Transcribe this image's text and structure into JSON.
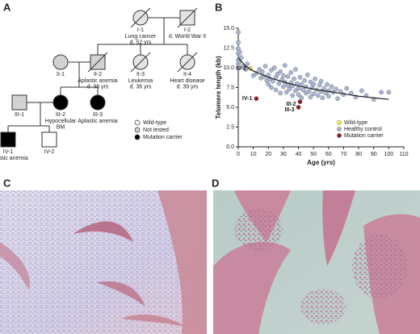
{
  "panel_labels": [
    "A",
    "B",
    "C",
    "D"
  ],
  "pedigree": {
    "nodes": [
      {
        "id": "I-1",
        "shape": "circle",
        "fill": "#e4e4e4",
        "deceased": true,
        "caption": [
          "Lung cancer",
          "d. 52 yrs"
        ]
      },
      {
        "id": "I-2",
        "shape": "square",
        "fill": "#e4e4e4",
        "deceased": true,
        "caption": [
          "d. World War II"
        ]
      },
      {
        "id": "II-1",
        "shape": "circle",
        "fill": "#d2d2d2",
        "deceased": false,
        "caption": []
      },
      {
        "id": "II-2",
        "shape": "square",
        "fill": "#d2d2d2",
        "deceased": true,
        "caption": [
          "Aplastic anemia",
          "d. 38 yrs"
        ]
      },
      {
        "id": "II-3",
        "shape": "circle",
        "fill": "#e4e4e4",
        "deceased": true,
        "caption": [
          "Leukemia",
          "d. 36 yrs"
        ]
      },
      {
        "id": "II-4",
        "shape": "circle",
        "fill": "#e4e4e4",
        "deceased": true,
        "caption": [
          "Heart disease",
          "d. 39 yrs"
        ]
      },
      {
        "id": "III-1",
        "shape": "square",
        "fill": "#d2d2d2",
        "deceased": false,
        "caption": []
      },
      {
        "id": "III-2",
        "shape": "circle",
        "fill": "#000000",
        "deceased": false,
        "caption": [
          "Hypocellular",
          "BM"
        ]
      },
      {
        "id": "III-3",
        "shape": "circle",
        "fill": "#000000",
        "deceased": false,
        "caption": [
          "Aplastic anemia"
        ]
      },
      {
        "id": "IV-1",
        "shape": "square",
        "fill": "#000000",
        "deceased": false,
        "caption": [
          "Aplastic anemia"
        ]
      },
      {
        "id": "IV-2",
        "shape": "square",
        "fill": "#ffffff",
        "deceased": false,
        "caption": []
      }
    ],
    "legend": [
      {
        "label": "Wild-type",
        "fill": "#ffffff"
      },
      {
        "label": "Not tested",
        "fill": "#d2d2d2"
      },
      {
        "label": "Mutation carrier",
        "fill": "#000000"
      }
    ]
  },
  "chart_data": {
    "type": "scatter",
    "x_label": "Age (yrs)",
    "y_label": "Telomere length (kb)",
    "xlim": [
      0,
      110
    ],
    "xticks": [
      0,
      10,
      20,
      30,
      40,
      50,
      60,
      70,
      80,
      90,
      100,
      110
    ],
    "ylim": [
      0,
      15
    ],
    "yticks": [
      {
        "value": 0,
        "label": "0.0"
      },
      {
        "value": 2.5,
        "label": "2.5"
      },
      {
        "value": 5,
        "label": "5.0"
      },
      {
        "value": 7.5,
        "label": "7.5"
      },
      {
        "value": 10,
        "label": "10.0"
      },
      {
        "value": 12.5,
        "label": "12.5"
      },
      {
        "value": 15,
        "label": "15.0"
      }
    ],
    "legend_position": "lower right",
    "series": [
      {
        "name": "Wild-type",
        "color": "#f2e84a",
        "x": [
          8
        ],
        "values": [
          9.9
        ],
        "labels": [
          "IV-2"
        ]
      },
      {
        "name": "Healthy control",
        "color": "#a9b8d6",
        "x": [
          0,
          0,
          0,
          0,
          0,
          0,
          0,
          1,
          1,
          2,
          3,
          5,
          6,
          10,
          12,
          14,
          15,
          16,
          17,
          18,
          19,
          20,
          20,
          21,
          22,
          22,
          23,
          24,
          25,
          25,
          26,
          27,
          28,
          28,
          29,
          30,
          30,
          31,
          31,
          32,
          33,
          33,
          34,
          35,
          35,
          36,
          36,
          37,
          38,
          38,
          39,
          40,
          40,
          41,
          42,
          42,
          43,
          44,
          45,
          45,
          46,
          47,
          48,
          48,
          49,
          50,
          50,
          51,
          52,
          53,
          54,
          55,
          55,
          56,
          57,
          58,
          59,
          60,
          60,
          62,
          63,
          65,
          66,
          68,
          70,
          72,
          75,
          78,
          82,
          85,
          90,
          95,
          100
        ],
        "values": [
          14.5,
          13.2,
          12.4,
          11.8,
          11.0,
          10.5,
          10.0,
          12.0,
          10.8,
          11.3,
          10.2,
          9.8,
          10.5,
          9.0,
          9.3,
          9.8,
          8.7,
          9.5,
          8.9,
          10.2,
          8.4,
          9.1,
          7.9,
          8.6,
          9.7,
          7.5,
          8.3,
          10.0,
          8.8,
          7.2,
          9.2,
          8.0,
          6.8,
          9.5,
          8.5,
          7.6,
          9.0,
          10.3,
          8.2,
          6.9,
          7.8,
          8.9,
          7.3,
          9.4,
          8.1,
          6.5,
          7.7,
          8.6,
          7.1,
          9.8,
          8.0,
          7.4,
          6.6,
          8.8,
          7.9,
          6.2,
          7.2,
          8.4,
          7.6,
          6.8,
          9.1,
          7.0,
          8.2,
          6.3,
          7.5,
          7.9,
          6.7,
          8.6,
          7.2,
          6.5,
          7.8,
          7.0,
          8.3,
          6.2,
          7.4,
          6.8,
          7.9,
          7.1,
          6.4,
          7.6,
          6.9,
          7.3,
          6.1,
          7.0,
          6.6,
          7.4,
          6.8,
          6.3,
          7.1,
          6.5,
          6.0,
          6.9,
          6.9
        ]
      },
      {
        "name": "Mutation carrier",
        "color": "#9b1c1c",
        "x": [
          12,
          41,
          40
        ],
        "values": [
          6.1,
          5.7,
          5.0
        ],
        "labels": [
          "IV-1",
          "III-2",
          "III-3"
        ]
      }
    ],
    "trend": {
      "color": "#222222",
      "x": [
        0,
        5,
        10,
        20,
        30,
        40,
        50,
        60,
        70,
        80,
        90,
        100
      ],
      "values": [
        11.2,
        10.2,
        9.6,
        8.8,
        8.2,
        7.7,
        7.3,
        7.0,
        6.7,
        6.4,
        6.2,
        6.0
      ]
    }
  }
}
